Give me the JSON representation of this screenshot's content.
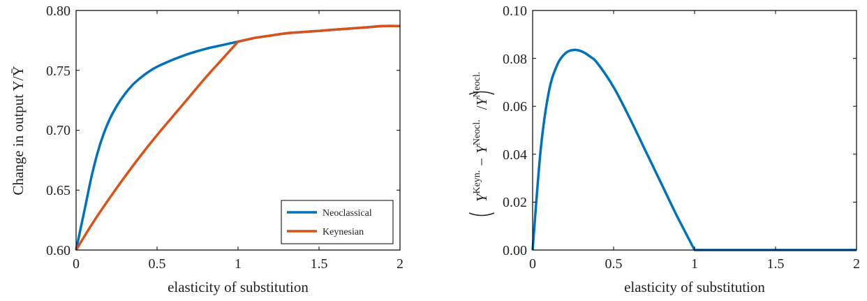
{
  "chart_data": [
    {
      "type": "line",
      "title": "",
      "xlabel": "elasticity of substitution",
      "ylabel": "Change in output Y/Ȳ",
      "xlim": [
        0,
        2
      ],
      "ylim": [
        0.6,
        0.8
      ],
      "xticks": [
        "0",
        "0.5",
        "1",
        "1.5",
        "2"
      ],
      "yticks": [
        "0.60",
        "0.65",
        "0.70",
        "0.75",
        "0.80"
      ],
      "grid": false,
      "legend": "bottom-right",
      "series": [
        {
          "name": "Neoclassical",
          "color": "#0072bd",
          "x": [
            0,
            0.05,
            0.1,
            0.15,
            0.2,
            0.25,
            0.3,
            0.35,
            0.4,
            0.45,
            0.5,
            0.6,
            0.7,
            0.8,
            0.9,
            1.0,
            1.1,
            1.2,
            1.3,
            1.4,
            1.5,
            1.6,
            1.7,
            1.8,
            1.9,
            2.0
          ],
          "y": [
            0.6,
            0.632,
            0.664,
            0.689,
            0.707,
            0.72,
            0.73,
            0.738,
            0.744,
            0.749,
            0.753,
            0.759,
            0.764,
            0.768,
            0.771,
            0.774,
            0.777,
            0.779,
            0.781,
            0.782,
            0.783,
            0.784,
            0.785,
            0.786,
            0.787,
            0.787
          ]
        },
        {
          "name": "Keynesian",
          "color": "#d95319",
          "x": [
            0,
            0.1,
            0.2,
            0.3,
            0.4,
            0.5,
            0.6,
            0.7,
            0.8,
            0.9,
            1.0,
            1.1,
            1.2,
            1.3,
            1.4,
            1.5,
            1.6,
            1.7,
            1.8,
            1.9,
            2.0
          ],
          "y": [
            0.6,
            0.622,
            0.642,
            0.661,
            0.679,
            0.696,
            0.712,
            0.728,
            0.744,
            0.759,
            0.774,
            0.777,
            0.779,
            0.781,
            0.782,
            0.783,
            0.784,
            0.785,
            0.786,
            0.787,
            0.787
          ]
        }
      ]
    },
    {
      "type": "line",
      "title": "",
      "xlabel": "elasticity of substitution",
      "ylabel": "(Y^Keyn. − Y^Neocl.)/Y^Neocl.",
      "ylabel_parts": {
        "base1": "Y",
        "sup1": "Keyn.",
        "minus": "−",
        "base2": "Y",
        "sup2": "Neocl.",
        "slash": "/",
        "base3": "Y",
        "sup3": "Neocl."
      },
      "xlim": [
        0,
        2
      ],
      "ylim": [
        0,
        0.1
      ],
      "xticks": [
        "0",
        "0.5",
        "1",
        "1.5",
        "2"
      ],
      "yticks": [
        "0.00",
        "0.02",
        "0.04",
        "0.06",
        "0.08",
        "0.10"
      ],
      "grid": false,
      "series": [
        {
          "color": "#0072bd",
          "x": [
            0,
            0.05,
            0.1,
            0.15,
            0.2,
            0.25,
            0.3,
            0.35,
            0.4,
            0.5,
            0.6,
            0.7,
            0.8,
            0.9,
            1.0,
            1.5,
            2.0
          ],
          "y": [
            0.0,
            0.042,
            0.066,
            0.077,
            0.082,
            0.0835,
            0.083,
            0.081,
            0.078,
            0.068,
            0.055,
            0.041,
            0.027,
            0.013,
            0.0,
            0.0,
            0.0
          ]
        }
      ]
    }
  ]
}
